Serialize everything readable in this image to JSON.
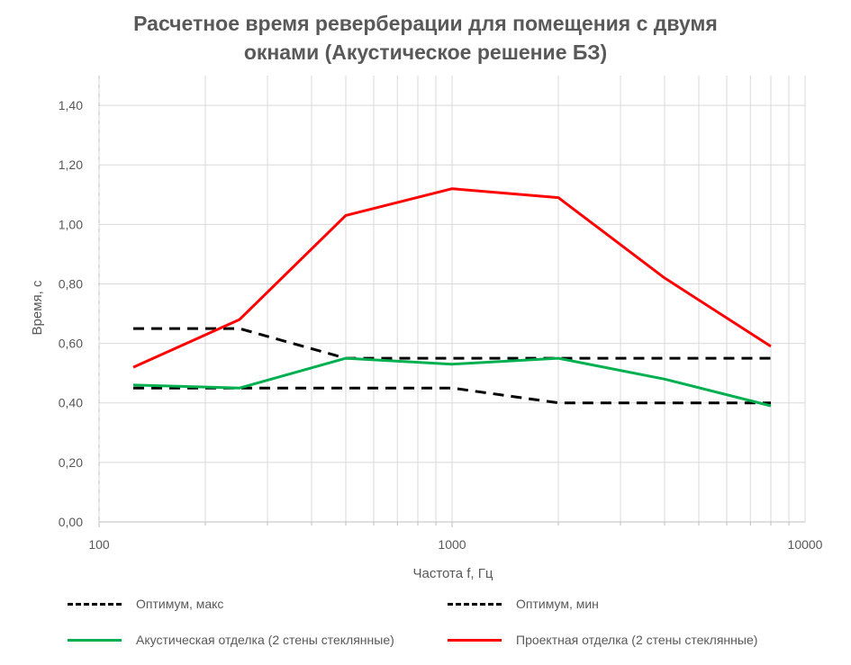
{
  "chart_data": {
    "type": "line",
    "title_line1": "Расчетное время реверберации для помещения с двумя",
    "title_line2": "окнами (Акустическое решение БЗ)",
    "xlabel": "Частота f, Гц",
    "ylabel": "Время, с",
    "xscale": "log",
    "xlim": [
      100,
      10000
    ],
    "ylim": [
      0,
      1.5
    ],
    "x_tick_labels": [
      "100",
      "1000",
      "10000"
    ],
    "y_tick_labels": [
      "0,00",
      "0,20",
      "0,40",
      "0,60",
      "0,80",
      "1,00",
      "1,20",
      "1,40"
    ],
    "y_ticks": [
      0,
      0.2,
      0.4,
      0.6,
      0.8,
      1.0,
      1.2,
      1.4
    ],
    "x_ticks": [
      100,
      1000,
      10000
    ],
    "grid": true,
    "legend_position": "bottom",
    "x": [
      125,
      250,
      500,
      1000,
      2000,
      4000,
      8000
    ],
    "series": [
      {
        "name": "Оптимум, макс",
        "color": "#000000",
        "dashed": true,
        "values": [
          0.65,
          0.65,
          0.55,
          0.55,
          0.55,
          0.55,
          0.55
        ]
      },
      {
        "name": "Оптимум, мин",
        "color": "#000000",
        "dashed": true,
        "values": [
          0.45,
          0.45,
          0.45,
          0.45,
          0.4,
          0.4,
          0.4
        ]
      },
      {
        "name": "Акустическая отделка (2 стены стеклянные)",
        "color": "#00b050",
        "dashed": false,
        "values": [
          0.46,
          0.45,
          0.55,
          0.53,
          0.55,
          0.48,
          0.39
        ]
      },
      {
        "name": "Проектная отделка (2 стены стеклянные)",
        "color": "#ff0000",
        "dashed": false,
        "values": [
          0.52,
          0.68,
          1.03,
          1.12,
          1.09,
          0.82,
          0.59
        ]
      }
    ]
  }
}
